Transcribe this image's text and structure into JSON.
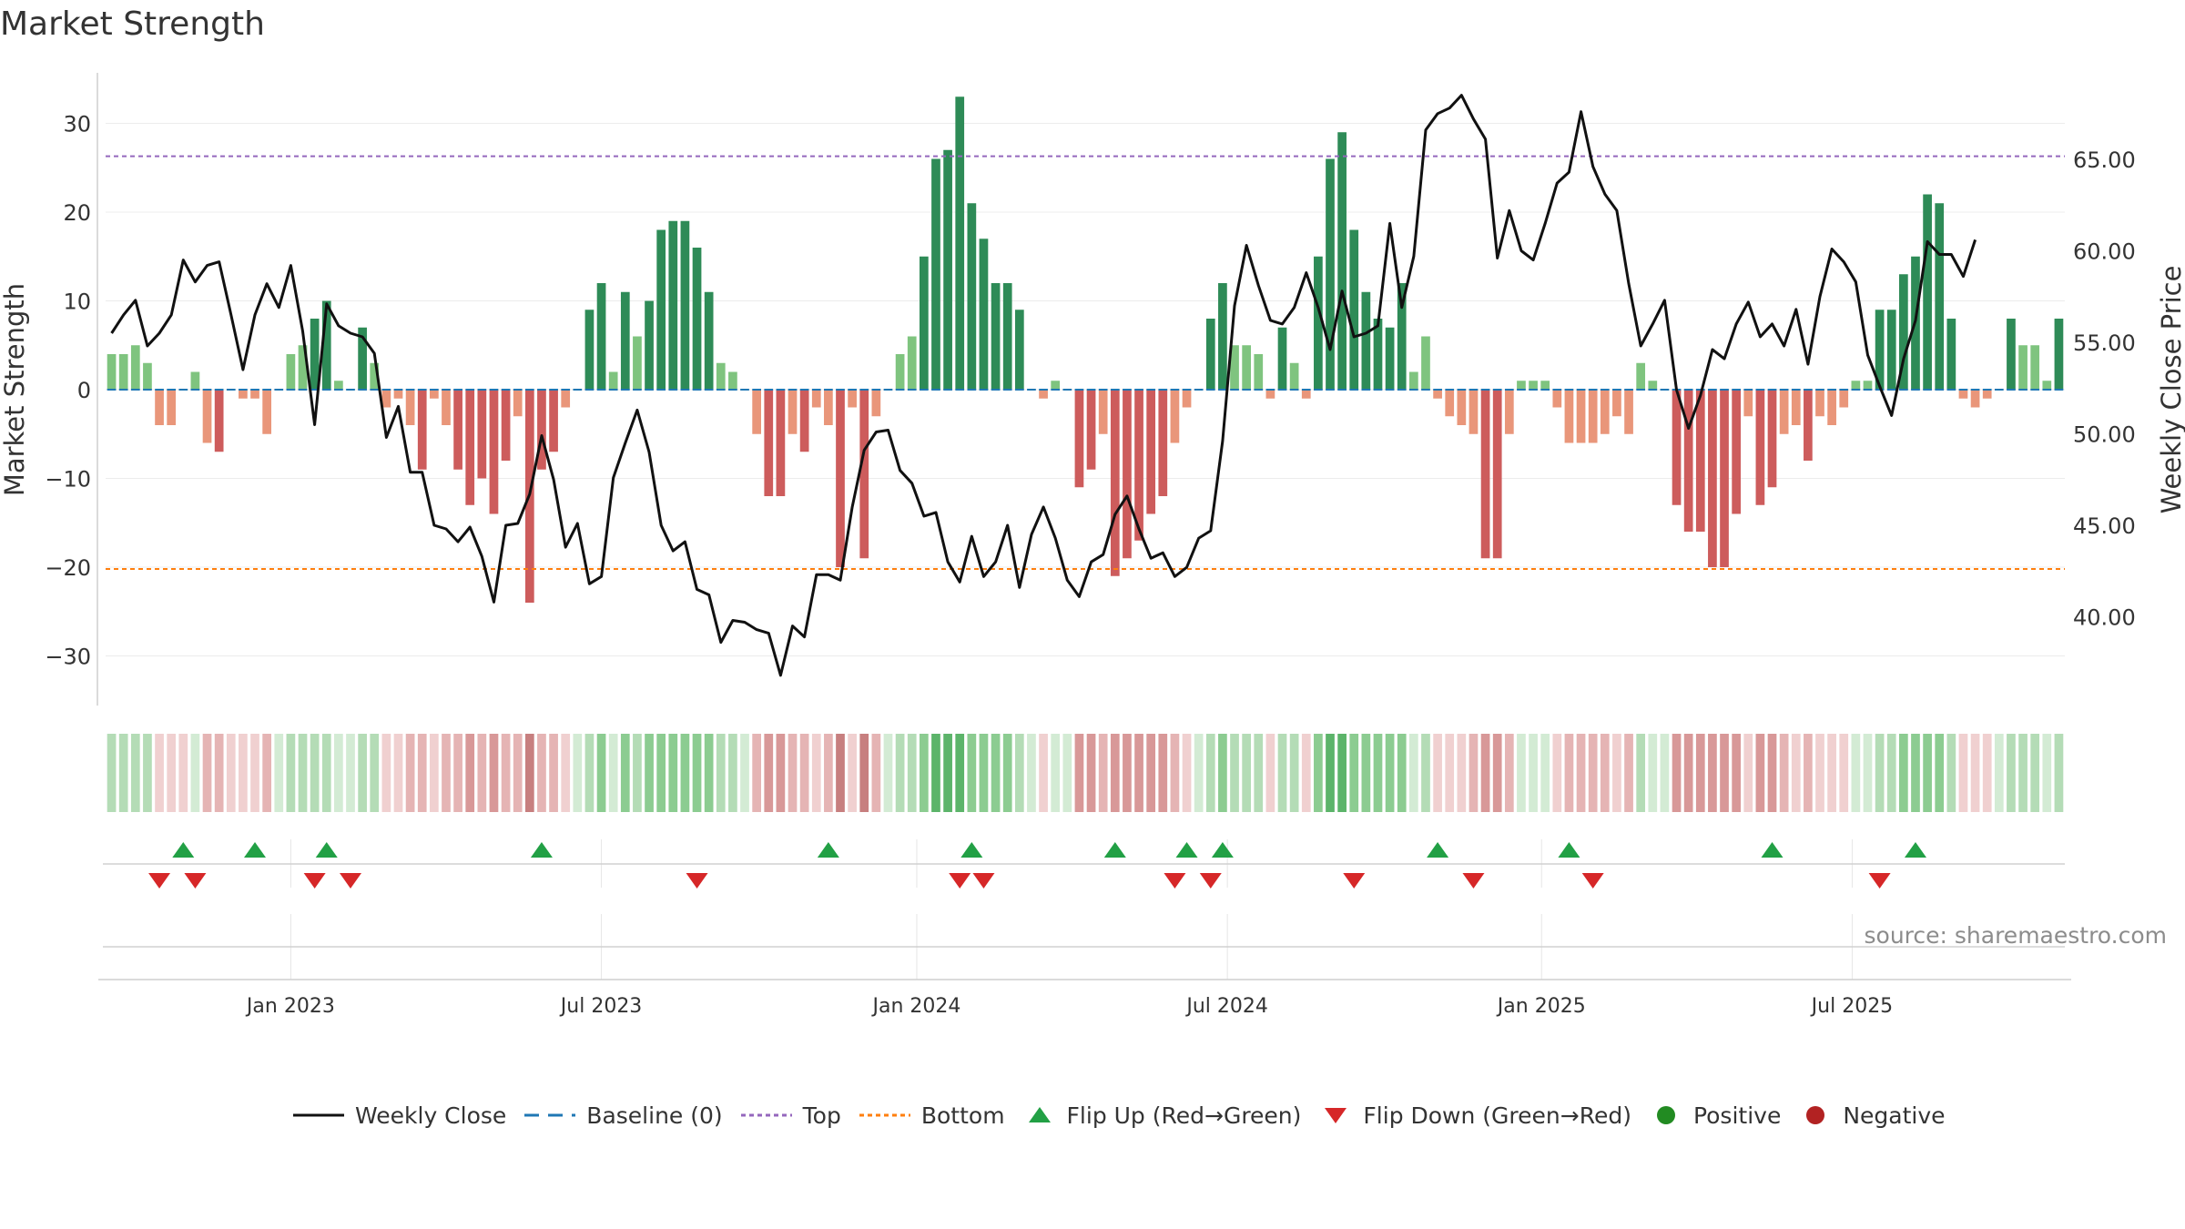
{
  "title": "Market Strength",
  "source": "source: sharemaestro.com",
  "chart_data": {
    "type": "bar",
    "title": "Market Strength",
    "ylabel": "Market Strength",
    "ylabel_right": "Weekly Close Price",
    "ylim": [
      -36,
      36
    ],
    "ylim_right": [
      35.5,
      70.0
    ],
    "yticks": [
      30,
      20,
      10,
      0,
      -10,
      -20,
      -30
    ],
    "ytick_labels": [
      "30",
      "20",
      "10",
      "0",
      "−10",
      "−20",
      "−30"
    ],
    "yticks_right": [
      65,
      60,
      55,
      50,
      45,
      40
    ],
    "ytick_labels_right": [
      "65.00",
      "60.00",
      "55.00",
      "50.00",
      "45.00",
      "40.00"
    ],
    "top_level": 26.3,
    "bottom_level": -20.2,
    "start_week": "2022-09-16",
    "x_tick_labels": [
      "Jan 2023",
      "Jul 2023",
      "Jan 2024",
      "Jul 2024",
      "Jan 2025",
      "Jul 2025"
    ],
    "x_tick_weeks": [
      15,
      41,
      67.4,
      93.4,
      119.7,
      145.7
    ],
    "strength": [
      4,
      4,
      5,
      3,
      -4,
      -4,
      0,
      2,
      -6,
      -7,
      0,
      -1,
      -1,
      -5,
      0,
      4,
      5,
      8,
      10,
      1,
      0,
      7,
      3,
      -2,
      -1,
      -4,
      -9,
      -1,
      -4,
      -9,
      -13,
      -10,
      -14,
      -8,
      -3,
      -24,
      -9,
      -7,
      -2,
      0,
      9,
      12,
      2,
      11,
      6,
      10,
      18,
      19,
      19,
      16,
      11,
      3,
      2,
      0,
      -5,
      -12,
      -12,
      -5,
      -7,
      -2,
      -4,
      -20,
      -2,
      -19,
      -3,
      0,
      4,
      6,
      15,
      26,
      27,
      33,
      21,
      17,
      12,
      12,
      9,
      0,
      -1,
      1,
      0,
      -11,
      -9,
      -5,
      -21,
      -19,
      -17,
      -14,
      -12,
      -6,
      -2,
      0,
      8,
      12,
      5,
      5,
      4,
      -1,
      7,
      3,
      -1,
      15,
      26,
      29,
      18,
      11,
      8,
      7,
      12,
      2,
      6,
      -1,
      -3,
      -4,
      -5,
      -19,
      -19,
      -5,
      1,
      1,
      1,
      -2,
      -6,
      -6,
      -6,
      -5,
      -3,
      -5,
      3,
      1,
      0,
      -13,
      -16,
      -16,
      -20,
      -20,
      -14,
      -3,
      -13,
      -11,
      -5,
      -4,
      -8,
      -3,
      -4,
      -2,
      1,
      1,
      9,
      9,
      13,
      15,
      22,
      21,
      8,
      -1,
      -2,
      -1,
      0,
      8,
      5,
      5,
      1,
      8
    ],
    "weekly_close": [
      55.5,
      56.5,
      57.3,
      54.8,
      55.5,
      56.5,
      59.5,
      58.3,
      59.2,
      59.4,
      56.5,
      53.5,
      56.5,
      58.2,
      56.9,
      59.2,
      55.6,
      50.5,
      57.1,
      55.9,
      55.5,
      55.3,
      54.4,
      49.8,
      51.5,
      47.9,
      47.9,
      45.0,
      44.8,
      44.1,
      44.9,
      43.3,
      40.8,
      45.0,
      45.1,
      46.7,
      49.9,
      47.5,
      43.8,
      45.1,
      41.8,
      42.2,
      47.6,
      49.5,
      51.3,
      49.0,
      45.0,
      43.6,
      44.1,
      41.5,
      41.2,
      38.6,
      39.8,
      39.7,
      39.3,
      39.1,
      36.8,
      39.5,
      38.9,
      42.3,
      42.3,
      42.0,
      46.0,
      49.1,
      50.1,
      50.2,
      48.0,
      47.3,
      45.5,
      45.7,
      43.0,
      41.9,
      44.4,
      42.2,
      43.0,
      45.0,
      41.6,
      44.5,
      46.0,
      44.3,
      42.0,
      41.1,
      43.0,
      43.4,
      45.6,
      46.6,
      44.8,
      43.2,
      43.5,
      42.2,
      42.7,
      44.3,
      44.7,
      49.6,
      57.0,
      60.3,
      58.1,
      56.2,
      56.0,
      56.9,
      58.8,
      56.9,
      54.6,
      57.8,
      55.3,
      55.5,
      55.9,
      61.5,
      56.9,
      59.7,
      66.6,
      67.5,
      67.8,
      68.5,
      67.2,
      66.1,
      59.6,
      62.2,
      60.0,
      59.5,
      61.5,
      63.7,
      64.3,
      67.6,
      64.6,
      63.1,
      62.2,
      58.2,
      54.8,
      56.0,
      57.3,
      52.4,
      50.3,
      52.1,
      54.6,
      54.1,
      56.0,
      57.2,
      55.3,
      56.0,
      54.8,
      56.8,
      53.8,
      57.5,
      60.1,
      59.4,
      58.3,
      54.3,
      52.6,
      51.0,
      54.1,
      56.2,
      60.5,
      59.8,
      59.8,
      58.6,
      60.6
    ],
    "heat_strip": [
      2,
      2,
      2,
      2,
      -1,
      -1,
      -1,
      1,
      -2,
      -2,
      -1,
      -1,
      -1,
      -2,
      1,
      2,
      2,
      2,
      2,
      1,
      1,
      2,
      2,
      -1,
      -1,
      -2,
      -2,
      -1,
      -2,
      -2,
      -3,
      -2,
      -3,
      -2,
      -2,
      -4,
      -2,
      -2,
      -1,
      1,
      2,
      3,
      1,
      3,
      2,
      3,
      3,
      3,
      3,
      3,
      3,
      2,
      2,
      1,
      -2,
      -3,
      -3,
      -2,
      -2,
      -1,
      -2,
      -4,
      -1,
      -4,
      -2,
      1,
      2,
      2,
      3,
      4,
      4,
      4,
      3,
      3,
      3,
      3,
      2,
      1,
      -1,
      1,
      1,
      -3,
      -3,
      -2,
      -3,
      -3,
      -3,
      -3,
      -3,
      -2,
      -1,
      1,
      2,
      3,
      2,
      2,
      2,
      -1,
      2,
      2,
      -1,
      3,
      4,
      4,
      3,
      3,
      3,
      3,
      3,
      1,
      2,
      -1,
      -1,
      -1,
      -2,
      -3,
      -3,
      -2,
      1,
      1,
      1,
      -1,
      -2,
      -2,
      -2,
      -2,
      -1,
      -2,
      2,
      1,
      1,
      -3,
      -3,
      -3,
      -3,
      -3,
      -3,
      -1,
      -3,
      -3,
      -2,
      -1,
      -2,
      -1,
      -1,
      -1,
      1,
      1,
      2,
      2,
      3,
      3,
      3,
      3,
      2,
      -1,
      -1,
      -1,
      1,
      2,
      2,
      2,
      1,
      2
    ],
    "flip_up_weeks": [
      6,
      12,
      18,
      36,
      60,
      72,
      84,
      90,
      93,
      111,
      122,
      139,
      151
    ],
    "flip_down_weeks": [
      4,
      7,
      17,
      20,
      49,
      71,
      73,
      89,
      92,
      104,
      114,
      124,
      148
    ],
    "legend": [
      "Weekly Close",
      "Baseline (0)",
      "Top",
      "Bottom",
      "Flip Up (Red→Green)",
      "Flip Down (Green→Red)",
      "Positive",
      "Negative"
    ],
    "colors": {
      "pos_strong": "#2e8b57",
      "pos_light": "#7fc47f",
      "neg_strong": "#cd5c5c",
      "neg_light": "#e9967a",
      "line": "#111111",
      "baseline": "#1f77b4",
      "top": "#9467bd",
      "bottom": "#ff7f0e",
      "flip_up": "#22a045",
      "flip_down": "#d62728",
      "positive_dot": "#228b22",
      "negative_dot": "#b22222",
      "strip_pos": [
        "#d3ebd4",
        "#b4dcb6",
        "#8ccc91",
        "#5cb46a"
      ],
      "strip_neg": [
        "#f0d0d0",
        "#e5b4b4",
        "#d89898",
        "#c77f7f"
      ]
    }
  }
}
